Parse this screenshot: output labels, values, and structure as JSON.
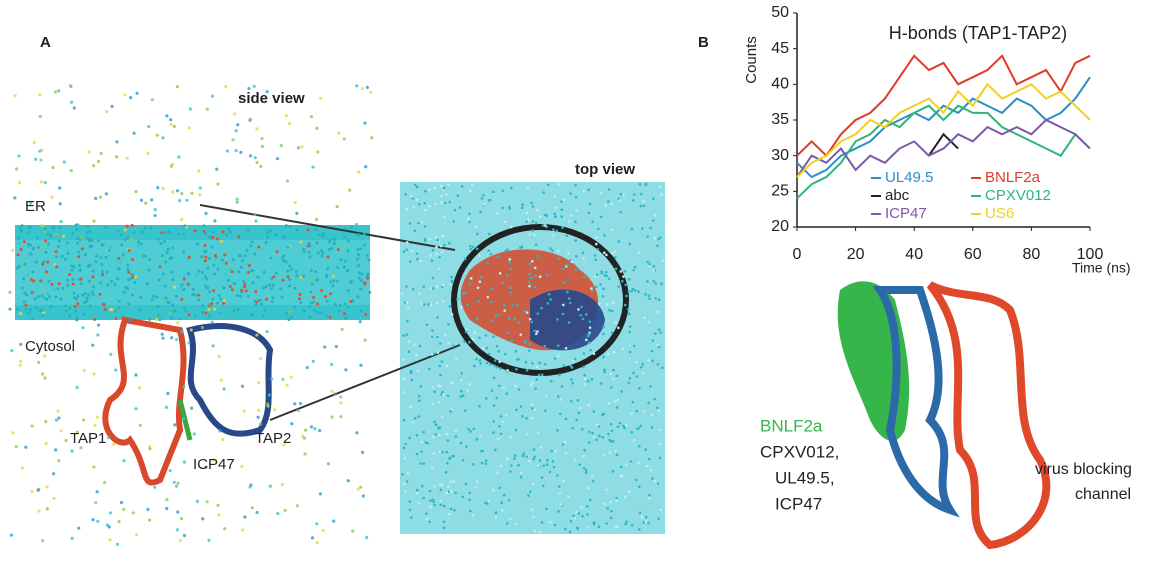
{
  "panel_a": {
    "label": "A",
    "side_view": "side view",
    "top_view": "top view",
    "er": "ER",
    "cytosol": "Cytosol",
    "tap1": "TAP1",
    "tap2": "TAP2",
    "icp47": "ICP47"
  },
  "panel_b": {
    "label": "B",
    "bnlf2a": "BNLF2a",
    "others": [
      "CPXV012,",
      "UL49.5,",
      "ICP47"
    ],
    "virus_lines": [
      "virus blocking",
      "channel"
    ]
  },
  "chart_data": {
    "type": "line",
    "title": "H-bonds (TAP1-TAP2)",
    "y_label": "Counts",
    "x_label": "Time (ns)",
    "x": [
      0,
      5,
      10,
      15,
      20,
      25,
      30,
      35,
      40,
      45,
      50,
      55,
      60,
      65,
      70,
      75,
      80,
      85,
      90,
      95,
      100
    ],
    "xlim": [
      0,
      100
    ],
    "xticks": [
      0,
      20,
      40,
      60,
      80,
      100
    ],
    "ylim": [
      20,
      50
    ],
    "yticks": [
      20,
      25,
      30,
      35,
      40,
      45,
      50
    ],
    "grid": false,
    "series": [
      {
        "name": "UL49.5",
        "color": "#2a8fc8",
        "values": [
          29,
          27,
          28,
          30,
          31,
          32,
          34,
          35,
          36,
          35,
          37,
          36,
          38,
          37,
          36,
          38,
          37,
          35,
          36,
          38,
          41
        ]
      },
      {
        "name": "BNLF2a",
        "color": "#e03a2a",
        "values": [
          30,
          32,
          30,
          33,
          35,
          36,
          38,
          41,
          44,
          42,
          43,
          40,
          41,
          42,
          44,
          40,
          41,
          42,
          39,
          43,
          44
        ]
      },
      {
        "name": "abc",
        "color": "#222222",
        "values": [
          null,
          null,
          null,
          null,
          null,
          null,
          null,
          null,
          null,
          30,
          33,
          31,
          null,
          null,
          null,
          null,
          null,
          null,
          null,
          null,
          null
        ]
      },
      {
        "name": "CPXV012",
        "color": "#2db57a",
        "values": [
          24,
          26,
          27,
          29,
          32,
          33,
          35,
          34,
          36,
          37,
          35,
          37,
          36,
          36,
          34,
          33,
          32,
          31,
          30,
          33,
          31
        ]
      },
      {
        "name": "ICP47",
        "color": "#7a5aa8",
        "values": [
          27,
          30,
          29,
          31,
          28,
          30,
          29,
          31,
          32,
          30,
          31,
          33,
          32,
          34,
          33,
          34,
          33,
          35,
          34,
          33,
          31
        ]
      },
      {
        "name": "US6",
        "color": "#f0d020",
        "values": [
          27,
          29,
          30,
          32,
          33,
          35,
          34,
          36,
          37,
          38,
          36,
          39,
          37,
          40,
          38,
          39,
          40,
          38,
          39,
          37,
          35
        ]
      }
    ]
  }
}
